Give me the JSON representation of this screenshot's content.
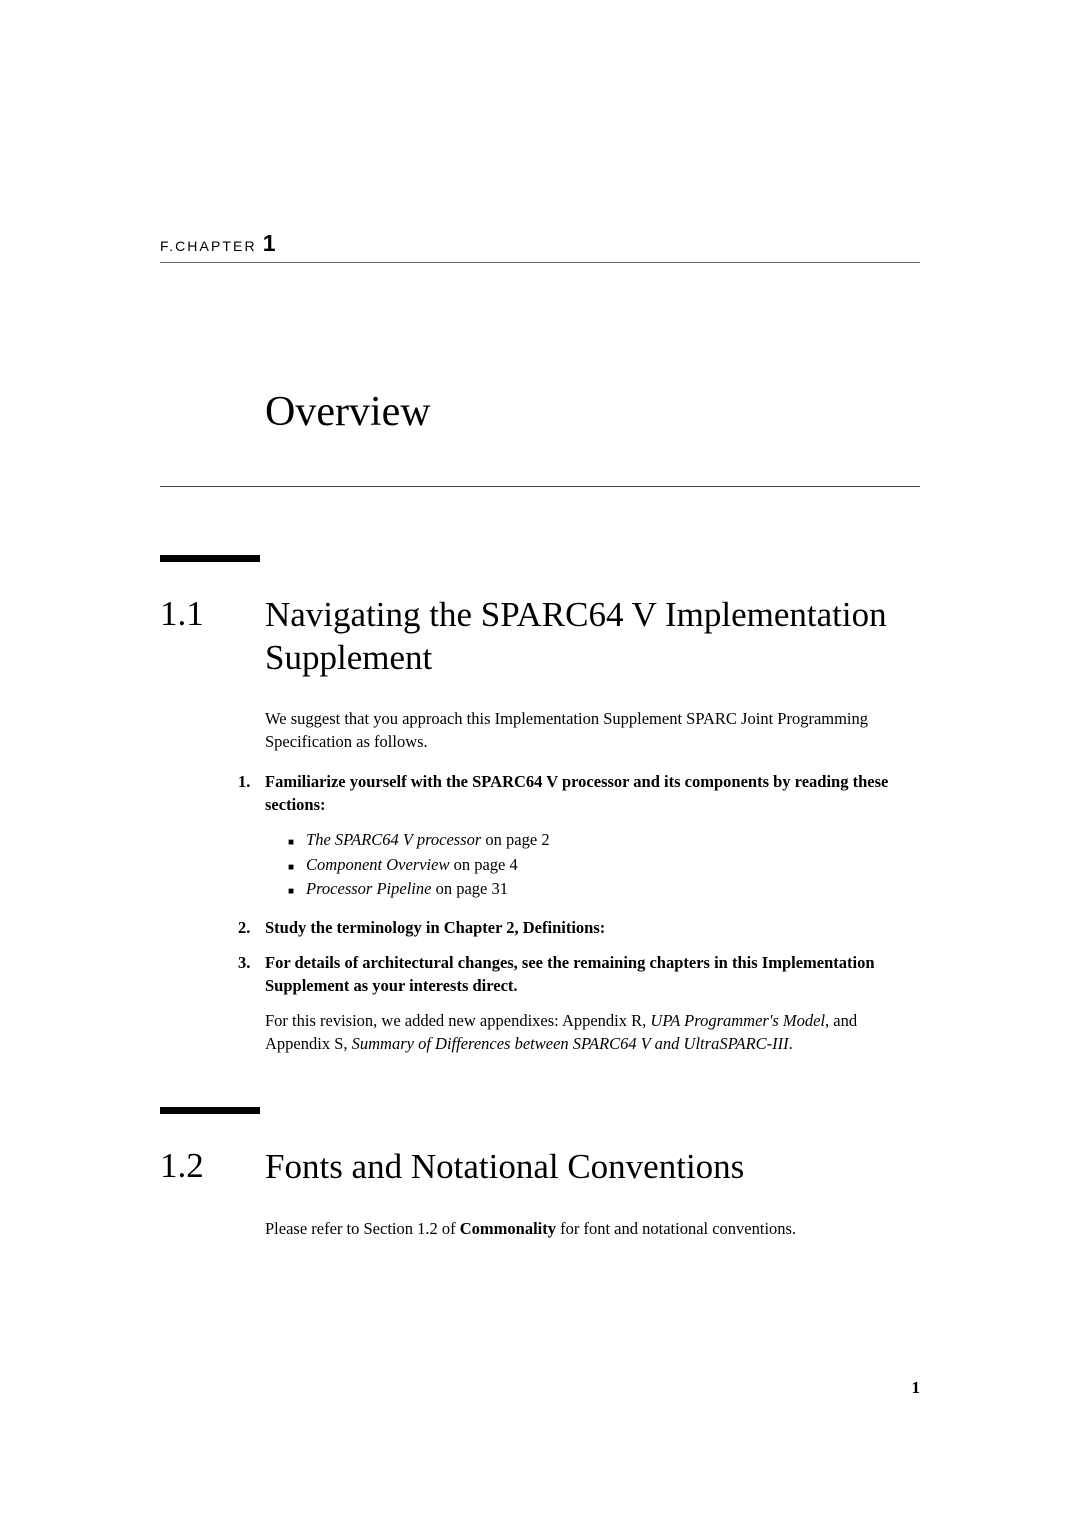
{
  "chapter": {
    "label_prefix": "F.CHAPTER",
    "number": "1",
    "title": "Overview"
  },
  "section1": {
    "number": "1.1",
    "title": "Navigating the SPARC64 V Implementation Supplement",
    "intro": "We suggest that you approach this Implementation Supplement SPARC Joint Programming Specification as follows.",
    "item1": {
      "num": "1.",
      "text": "Familiarize yourself with the SPARC64 V processor and its components by reading these sections:"
    },
    "bullets": [
      {
        "italic": "The SPARC64 V processor",
        "rest": " on page 2"
      },
      {
        "italic": "Component Overview",
        "rest": " on page 4"
      },
      {
        "italic": "Processor Pipeline",
        "rest": " on page 31"
      }
    ],
    "item2": {
      "num": "2.",
      "text": "Study the terminology in Chapter 2, Definitions:"
    },
    "item3": {
      "num": "3.",
      "text": "For details of architectural changes, see the remaining chapters in this Implementation Supplement as your interests direct."
    },
    "closing_pre": "For this revision, we added new appendixes: Appendix R, ",
    "closing_italic1": "UPA Programmer's Model",
    "closing_mid": ", and Appendix S, ",
    "closing_italic2": "Summary of Differences between SPARC64 V and UltraSPARC-III",
    "closing_end": "."
  },
  "section2": {
    "number": "1.2",
    "title": "Fonts and Notational Conventions",
    "body_pre": "Please refer to Section 1.2 of ",
    "body_bold": "Commonality",
    "body_post": " for font and notational conventions."
  },
  "page_number": "1"
}
